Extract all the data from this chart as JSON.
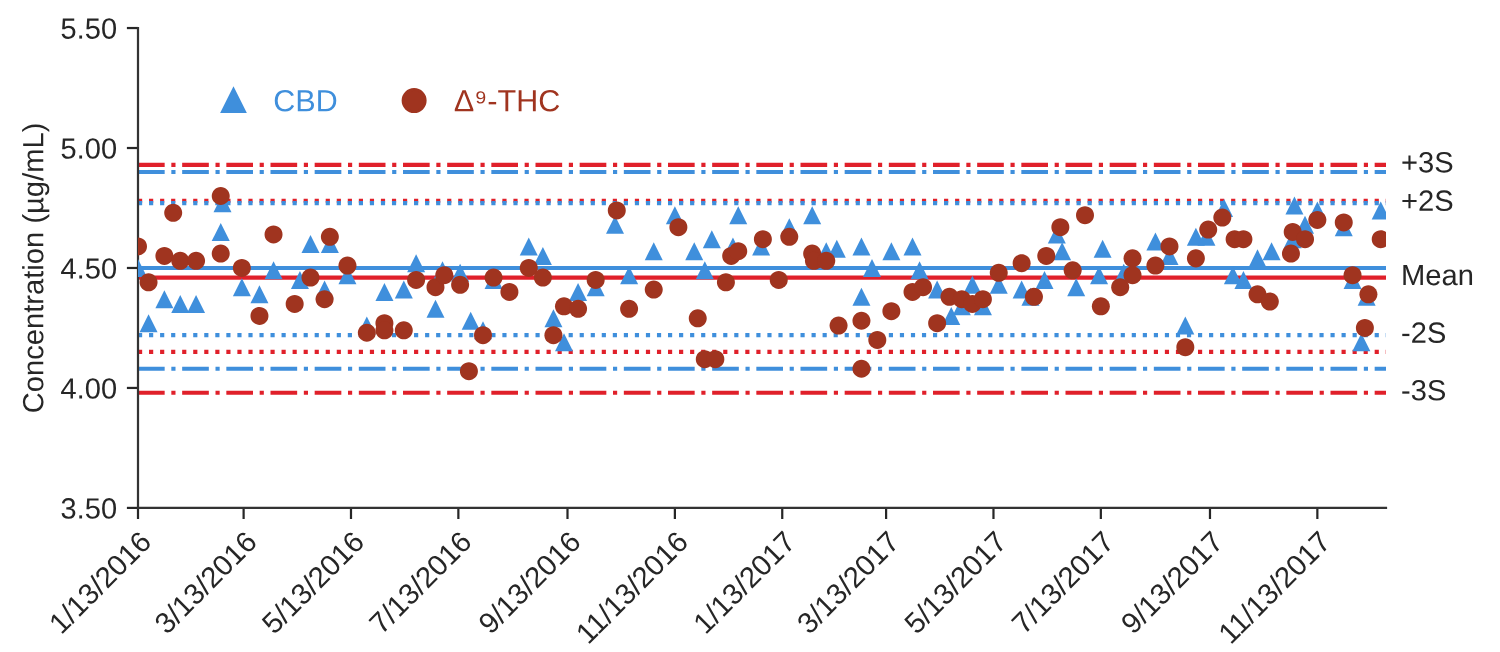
{
  "chart_data": {
    "type": "scatter",
    "ylabel": "Concentration (µg/mL)",
    "ylim": [
      3.5,
      5.5
    ],
    "yticks": [
      {
        "value": 3.5,
        "label": "3.50"
      },
      {
        "value": 4.0,
        "label": "4.00"
      },
      {
        "value": 4.5,
        "label": "4.50"
      },
      {
        "value": 5.0,
        "label": "5.00"
      },
      {
        "value": 5.5,
        "label": "5.50"
      }
    ],
    "xlim": [
      "2016-01-13",
      "2017-12-22"
    ],
    "xticks": [
      {
        "value": "2016-01-13",
        "label": "1/13/2016"
      },
      {
        "value": "2016-03-13",
        "label": "3/13/2016"
      },
      {
        "value": "2016-05-13",
        "label": "5/13/2016"
      },
      {
        "value": "2016-07-13",
        "label": "7/13/2016"
      },
      {
        "value": "2016-09-13",
        "label": "9/13/2016"
      },
      {
        "value": "2016-11-13",
        "label": "11/13/2016"
      },
      {
        "value": "2017-01-13",
        "label": "1/13/2017"
      },
      {
        "value": "2017-03-13",
        "label": "3/13/2017"
      },
      {
        "value": "2017-05-13",
        "label": "5/13/2017"
      },
      {
        "value": "2017-07-13",
        "label": "7/13/2017"
      },
      {
        "value": "2017-09-13",
        "label": "9/13/2017"
      },
      {
        "value": "2017-11-13",
        "label": "11/13/2017"
      }
    ],
    "grid": false,
    "legend": "top left",
    "series": [
      {
        "name": "CBD",
        "color": "#3f8fdc",
        "marker": "triangle",
        "x": [
          "2016-01-13",
          "2016-01-19",
          "2016-01-28",
          "2016-02-06",
          "2016-02-15",
          "2016-02-29",
          "2016-03-01",
          "2016-03-12",
          "2016-03-22",
          "2016-03-30",
          "2016-04-14",
          "2016-04-20",
          "2016-04-28",
          "2016-05-01",
          "2016-05-11",
          "2016-05-22",
          "2016-06-01",
          "2016-06-12",
          "2016-06-19",
          "2016-06-30",
          "2016-07-04",
          "2016-07-14",
          "2016-07-20",
          "2016-07-27",
          "2016-08-02",
          "2016-08-22",
          "2016-08-30",
          "2016-09-05",
          "2016-09-11",
          "2016-09-19",
          "2016-09-29",
          "2016-10-10",
          "2016-10-18",
          "2016-11-01",
          "2016-11-13",
          "2016-11-24",
          "2016-11-30",
          "2016-12-04",
          "2016-12-16",
          "2016-12-19",
          "2017-01-01",
          "2017-01-17",
          "2017-01-30",
          "2017-02-07",
          "2017-02-13",
          "2017-02-27",
          "2017-02-27",
          "2017-03-05",
          "2017-03-16",
          "2017-03-28",
          "2017-04-01",
          "2017-04-11",
          "2017-04-19",
          "2017-04-25",
          "2017-05-01",
          "2017-05-07",
          "2017-05-16",
          "2017-05-29",
          "2017-06-03",
          "2017-06-11",
          "2017-06-18",
          "2017-06-21",
          "2017-06-29",
          "2017-07-12",
          "2017-07-14",
          "2017-07-26",
          "2017-08-13",
          "2017-08-21",
          "2017-08-30",
          "2017-09-05",
          "2017-09-11",
          "2017-09-21",
          "2017-09-26",
          "2017-10-02",
          "2017-10-10",
          "2017-10-18",
          "2017-10-30",
          "2017-10-31",
          "2017-11-06",
          "2017-11-13",
          "2017-11-28",
          "2017-12-03",
          "2017-12-08",
          "2017-12-11",
          "2017-12-19"
        ],
        "values": [
          4.5,
          4.27,
          4.37,
          4.35,
          4.35,
          4.65,
          4.77,
          4.42,
          4.39,
          4.49,
          4.45,
          4.6,
          4.41,
          4.6,
          4.47,
          4.26,
          4.4,
          4.41,
          4.52,
          4.33,
          4.49,
          4.48,
          4.28,
          4.24,
          4.45,
          4.59,
          4.55,
          4.29,
          4.19,
          4.4,
          4.42,
          4.68,
          4.47,
          4.57,
          4.72,
          4.57,
          4.49,
          4.62,
          4.59,
          4.72,
          4.59,
          4.67,
          4.72,
          4.57,
          4.58,
          4.59,
          4.38,
          4.5,
          4.57,
          4.59,
          4.49,
          4.41,
          4.3,
          4.34,
          4.43,
          4.34,
          4.43,
          4.41,
          4.38,
          4.45,
          4.64,
          4.57,
          4.42,
          4.47,
          4.58,
          4.48,
          4.61,
          4.55,
          4.26,
          4.63,
          4.63,
          4.75,
          4.47,
          4.45,
          4.54,
          4.57,
          4.62,
          4.76,
          4.68,
          4.74,
          4.67,
          4.45,
          4.19,
          4.38,
          4.74
        ]
      },
      {
        "name": "Δ⁹-THC",
        "color": "#a0341f",
        "marker": "circle",
        "x": [
          "2016-01-13",
          "2016-01-19",
          "2016-01-28",
          "2016-02-02",
          "2016-02-06",
          "2016-02-15",
          "2016-02-29",
          "2016-02-29",
          "2016-03-12",
          "2016-03-22",
          "2016-03-30",
          "2016-04-11",
          "2016-04-20",
          "2016-04-28",
          "2016-05-01",
          "2016-05-11",
          "2016-05-22",
          "2016-06-01",
          "2016-06-01",
          "2016-06-12",
          "2016-06-19",
          "2016-06-30",
          "2016-07-05",
          "2016-07-14",
          "2016-07-19",
          "2016-07-27",
          "2016-08-02",
          "2016-08-11",
          "2016-08-22",
          "2016-08-30",
          "2016-09-05",
          "2016-09-11",
          "2016-09-19",
          "2016-09-29",
          "2016-10-11",
          "2016-10-18",
          "2016-11-01",
          "2016-11-15",
          "2016-11-26",
          "2016-11-30",
          "2016-12-06",
          "2016-12-12",
          "2016-12-15",
          "2016-12-19",
          "2017-01-02",
          "2017-01-11",
          "2017-01-17",
          "2017-01-30",
          "2017-01-31",
          "2017-02-07",
          "2017-02-14",
          "2017-02-27",
          "2017-02-27",
          "2017-03-08",
          "2017-03-16",
          "2017-03-28",
          "2017-04-03",
          "2017-04-11",
          "2017-04-18",
          "2017-04-25",
          "2017-05-01",
          "2017-05-07",
          "2017-05-16",
          "2017-05-29",
          "2017-06-05",
          "2017-06-12",
          "2017-06-20",
          "2017-06-27",
          "2017-07-04",
          "2017-07-13",
          "2017-07-24",
          "2017-07-31",
          "2017-07-31",
          "2017-08-21",
          "2017-08-13",
          "2017-08-30",
          "2017-09-05",
          "2017-09-12",
          "2017-09-20",
          "2017-09-27",
          "2017-10-02",
          "2017-10-10",
          "2017-10-17",
          "2017-10-29",
          "2017-10-30",
          "2017-11-06",
          "2017-11-13",
          "2017-11-28",
          "2017-12-03",
          "2017-12-10",
          "2017-12-12",
          "2017-12-19"
        ],
        "values": [
          4.59,
          4.44,
          4.55,
          4.73,
          4.53,
          4.53,
          4.56,
          4.8,
          4.5,
          4.3,
          4.64,
          4.35,
          4.46,
          4.37,
          4.63,
          4.51,
          4.23,
          4.27,
          4.24,
          4.24,
          4.45,
          4.42,
          4.47,
          4.43,
          4.07,
          4.22,
          4.46,
          4.4,
          4.5,
          4.46,
          4.22,
          4.34,
          4.33,
          4.45,
          4.74,
          4.33,
          4.41,
          4.67,
          4.29,
          4.12,
          4.12,
          4.44,
          4.55,
          4.57,
          4.62,
          4.45,
          4.63,
          4.56,
          4.53,
          4.53,
          4.26,
          4.28,
          4.08,
          4.2,
          4.32,
          4.4,
          4.42,
          4.27,
          4.38,
          4.37,
          4.35,
          4.37,
          4.48,
          4.52,
          4.38,
          4.55,
          4.67,
          4.49,
          4.72,
          4.34,
          4.42,
          4.54,
          4.47,
          4.59,
          4.51,
          4.17,
          4.54,
          4.66,
          4.71,
          4.62,
          4.62,
          4.39,
          4.36,
          4.56,
          4.65,
          4.62,
          4.7,
          4.69,
          4.47,
          4.25,
          4.39,
          4.62
        ]
      }
    ],
    "ref_lines": [
      {
        "axis": "y",
        "value": 4.93,
        "label": "+3S",
        "color": "#e0202a",
        "line_style": "dashdot"
      },
      {
        "axis": "y",
        "value": 4.9,
        "color": "#3f8fdc",
        "line_style": "dashdot"
      },
      {
        "axis": "y",
        "value": 4.78,
        "color": "#e0202a",
        "line_style": "dotted"
      },
      {
        "axis": "y",
        "value": 4.77,
        "label": "+2S",
        "color": "#3f8fdc",
        "line_style": "dotted"
      },
      {
        "axis": "y",
        "value": 4.5,
        "color": "#3f8fdc",
        "line_style": "solid"
      },
      {
        "axis": "y",
        "value": 4.46,
        "label": "Mean",
        "color": "#e0202a",
        "line_style": "solid"
      },
      {
        "axis": "y",
        "value": 4.22,
        "label": "-2S",
        "color": "#3f8fdc",
        "line_style": "dotted"
      },
      {
        "axis": "y",
        "value": 4.15,
        "color": "#e0202a",
        "line_style": "dotted"
      },
      {
        "axis": "y",
        "value": 4.08,
        "color": "#3f8fdc",
        "line_style": "dashdot"
      },
      {
        "axis": "y",
        "value": 3.98,
        "label": "-3S",
        "color": "#e0202a",
        "line_style": "dashdot"
      }
    ]
  }
}
